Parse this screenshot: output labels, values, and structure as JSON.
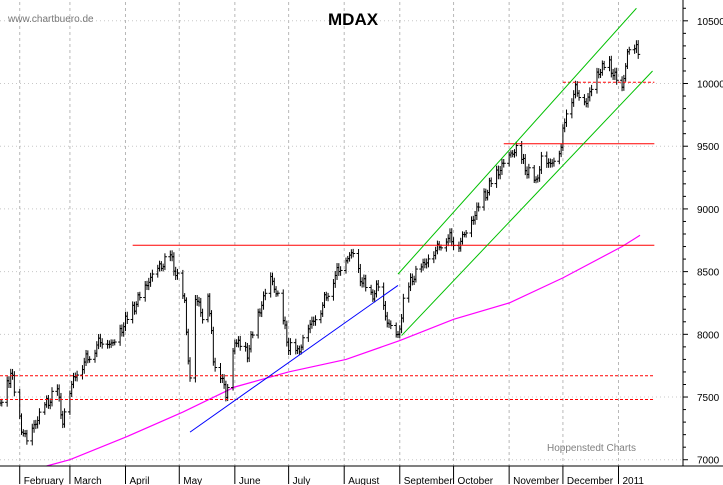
{
  "chart_data": {
    "type": "ohlc",
    "title": "MDAX",
    "watermark": "www.chartbuero.de",
    "source_label": "Hoppenstedt Charts",
    "grid": true,
    "ylim": [
      6950,
      10650
    ],
    "y_ticks": [
      7000,
      7500,
      8000,
      8500,
      9000,
      9500,
      10000,
      10500
    ],
    "x_range": [
      "2010-01-21",
      "2011-01-13"
    ],
    "months": [
      {
        "label": "February",
        "start": "2010-02-01"
      },
      {
        "label": "March",
        "start": "2010-03-01"
      },
      {
        "label": "April",
        "start": "2010-04-01"
      },
      {
        "label": "May",
        "start": "2010-05-01"
      },
      {
        "label": "June",
        "start": "2010-06-01"
      },
      {
        "label": "July",
        "start": "2010-07-01"
      },
      {
        "label": "August",
        "start": "2010-08-01"
      },
      {
        "label": "September",
        "start": "2010-09-01"
      },
      {
        "label": "October",
        "start": "2010-10-01"
      },
      {
        "label": "November",
        "start": "2010-11-01"
      },
      {
        "label": "December",
        "start": "2010-12-01"
      },
      {
        "label": "2011",
        "start": "2011-01-01"
      }
    ],
    "price_anchors": [
      [
        "2010-01-21",
        7420
      ],
      [
        "2010-01-25",
        7600
      ],
      [
        "2010-01-27",
        7700
      ],
      [
        "2010-02-02",
        7250
      ],
      [
        "2010-02-05",
        7150
      ],
      [
        "2010-02-10",
        7300
      ],
      [
        "2010-02-16",
        7450
      ],
      [
        "2010-02-22",
        7550
      ],
      [
        "2010-02-25",
        7300
      ],
      [
        "2010-03-03",
        7650
      ],
      [
        "2010-03-10",
        7800
      ],
      [
        "2010-03-18",
        7950
      ],
      [
        "2010-03-25",
        7920
      ],
      [
        "2010-04-01",
        8100
      ],
      [
        "2010-04-09",
        8300
      ],
      [
        "2010-04-15",
        8450
      ],
      [
        "2010-04-21",
        8550
      ],
      [
        "2010-04-26",
        8620
      ],
      [
        "2010-04-30",
        8450
      ],
      [
        "2010-05-04",
        8250
      ],
      [
        "2010-05-06",
        7800
      ],
      [
        "2010-05-07",
        7650
      ],
      [
        "2010-05-10",
        8300
      ],
      [
        "2010-05-14",
        8150
      ],
      [
        "2010-05-17",
        8350
      ],
      [
        "2010-05-20",
        7800
      ],
      [
        "2010-05-25",
        7650
      ],
      [
        "2010-05-27",
        7500
      ],
      [
        "2010-06-01",
        7950
      ],
      [
        "2010-06-08",
        7850
      ],
      [
        "2010-06-15",
        8200
      ],
      [
        "2010-06-21",
        8450
      ],
      [
        "2010-06-25",
        8300
      ],
      [
        "2010-07-01",
        7900
      ],
      [
        "2010-07-06",
        7850
      ],
      [
        "2010-07-12",
        8050
      ],
      [
        "2010-07-19",
        8200
      ],
      [
        "2010-07-26",
        8450
      ],
      [
        "2010-08-02",
        8600
      ],
      [
        "2010-08-06",
        8650
      ],
      [
        "2010-08-10",
        8450
      ],
      [
        "2010-08-16",
        8300
      ],
      [
        "2010-08-20",
        8380
      ],
      [
        "2010-08-25",
        8100
      ],
      [
        "2010-08-31",
        7970
      ],
      [
        "2010-09-03",
        8250
      ],
      [
        "2010-09-08",
        8450
      ],
      [
        "2010-09-14",
        8550
      ],
      [
        "2010-09-20",
        8650
      ],
      [
        "2010-09-27",
        8780
      ],
      [
        "2010-10-04",
        8720
      ],
      [
        "2010-10-11",
        8900
      ],
      [
        "2010-10-18",
        9100
      ],
      [
        "2010-10-25",
        9280
      ],
      [
        "2010-11-01",
        9420
      ],
      [
        "2010-11-05",
        9480
      ],
      [
        "2010-11-10",
        9330
      ],
      [
        "2010-11-16",
        9200
      ],
      [
        "2010-11-19",
        9400
      ],
      [
        "2010-11-24",
        9350
      ],
      [
        "2010-11-30",
        9500
      ],
      [
        "2010-12-03",
        9800
      ],
      [
        "2010-12-08",
        9950
      ],
      [
        "2010-12-14",
        9850
      ],
      [
        "2010-12-21",
        10100
      ],
      [
        "2010-12-27",
        10150
      ],
      [
        "2010-12-30",
        10050
      ],
      [
        "2011-01-03",
        9950
      ],
      [
        "2011-01-06",
        10250
      ],
      [
        "2011-01-11",
        10280
      ],
      [
        "2011-01-12",
        10250
      ]
    ],
    "moving_average": {
      "color": "#ff00ff",
      "points": [
        [
          "2010-02-16",
          6950
        ],
        [
          "2010-03-01",
          7000
        ],
        [
          "2010-04-01",
          7180
        ],
        [
          "2010-05-03",
          7380
        ],
        [
          "2010-06-01",
          7580
        ],
        [
          "2010-07-01",
          7700
        ],
        [
          "2010-08-02",
          7800
        ],
        [
          "2010-09-01",
          7950
        ],
        [
          "2010-10-01",
          8120
        ],
        [
          "2010-11-01",
          8250
        ],
        [
          "2010-12-01",
          8450
        ],
        [
          "2011-01-03",
          8700
        ],
        [
          "2011-01-13",
          8790
        ]
      ]
    },
    "horizontal_lines": [
      {
        "y": 8710,
        "color": "#ff0000",
        "style": "solid",
        "from": "2010-04-05",
        "to": "2011-01-21"
      },
      {
        "y": 9520,
        "color": "#ff0000",
        "style": "solid",
        "from": "2010-10-29",
        "to": "2011-01-21"
      },
      {
        "y": 10010,
        "color": "#ff0000",
        "style": "dashed",
        "from": "2010-12-01",
        "to": "2011-01-21"
      },
      {
        "y": 7670,
        "color": "#ff0000",
        "style": "dashed",
        "from": "2010-01-21",
        "to": "2011-01-21"
      },
      {
        "y": 7480,
        "color": "#ff0000",
        "style": "dashed",
        "from": "2010-01-21",
        "to": "2011-01-21"
      }
    ],
    "trend_lines": [
      {
        "name": "",
        "color": "#0000ff",
        "from": [
          "2010-05-07",
          7220
        ],
        "to": [
          "2010-08-31",
          8390
        ]
      },
      {
        "name": "",
        "color": "#00c000",
        "from": [
          "2010-08-31",
          8480
        ],
        "to": [
          "2011-01-11",
          10600
        ]
      },
      {
        "name": "",
        "color": "#00c000",
        "from": [
          "2010-09-02",
          7990
        ],
        "to": [
          "2011-01-20",
          10100
        ]
      }
    ]
  }
}
